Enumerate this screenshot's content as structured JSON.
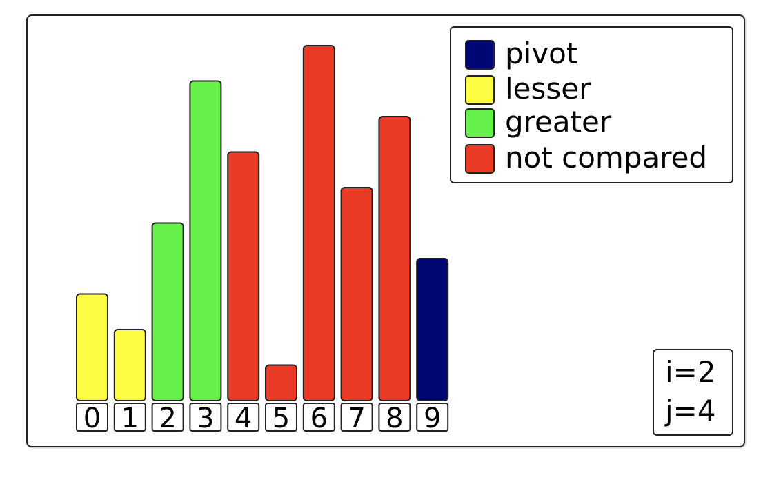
{
  "title": "",
  "legend": {
    "items": [
      {
        "label": "pivot",
        "color": "#000775"
      },
      {
        "label": "lesser",
        "color": "#fcfc43"
      },
      {
        "label": "greater",
        "color": "#66f04a"
      },
      {
        "label": "not compared",
        "color": "#e83a25"
      }
    ]
  },
  "counters": {
    "i": "i=2",
    "j": "j=4"
  },
  "chart_data": {
    "type": "bar",
    "categories": [
      "0",
      "1",
      "2",
      "3",
      "4",
      "5",
      "6",
      "7",
      "8",
      "9"
    ],
    "values": [
      3,
      2,
      5,
      9,
      7,
      1,
      10,
      6,
      8,
      4
    ],
    "states": [
      "lesser",
      "lesser",
      "greater",
      "greater",
      "not compared",
      "not compared",
      "not compared",
      "not compared",
      "not compared",
      "pivot"
    ],
    "ylim": [
      0,
      10
    ],
    "grid": false,
    "legend_position": "top-right"
  }
}
